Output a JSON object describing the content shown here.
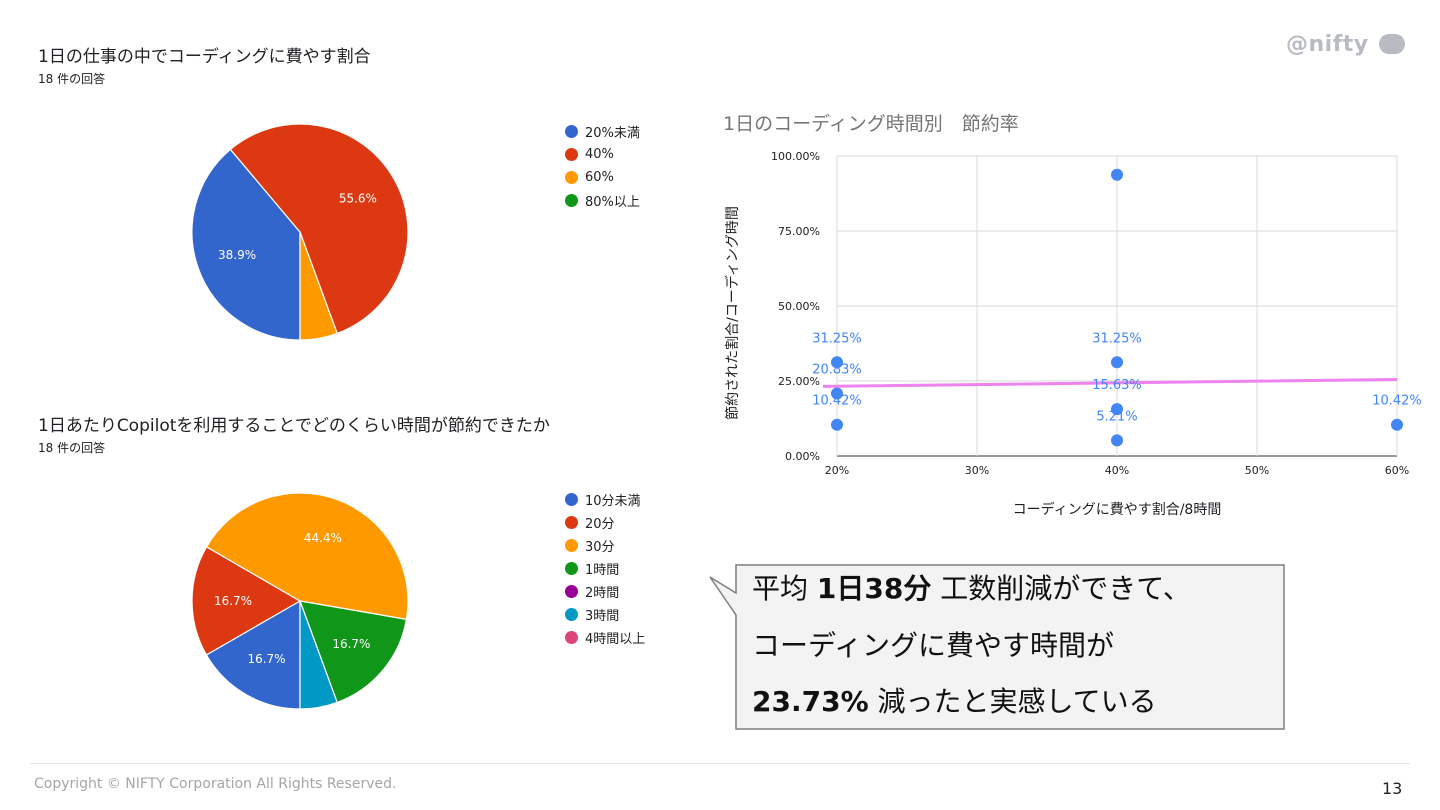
{
  "brand": "@nifty",
  "footer": {
    "copyright": "Copyright © NIFTY Corporation All Rights Reserved.",
    "page_number": "13"
  },
  "colors": {
    "blue": "#3366cc",
    "red": "#dc3912",
    "orange": "#ff9900",
    "green": "#109618",
    "purple": "#990099",
    "teal": "#0099c6",
    "pink": "#dd4477",
    "scatter": "#4285f4",
    "trend": "#ee82ee"
  },
  "chart_data": [
    {
      "type": "pie",
      "title": "1日の仕事の中でコーディングに費やす割合",
      "subtitle": "18 件の回答",
      "labels": [
        "20%未満",
        "40%",
        "60%",
        "80%以上"
      ],
      "values": [
        38.9,
        55.6,
        5.6,
        0
      ],
      "colors": [
        "#3366cc",
        "#dc3912",
        "#ff9900",
        "#109618"
      ],
      "data_labels": [
        "38.9%",
        "55.6%",
        "",
        ""
      ]
    },
    {
      "type": "pie",
      "title": "1日あたりCopilotを利用することでどのくらい時間が節約できたか",
      "subtitle": "18 件の回答",
      "labels": [
        "10分未満",
        "20分",
        "30分",
        "1時間",
        "2時間",
        "3時間",
        "4時間以上"
      ],
      "values": [
        16.7,
        16.7,
        44.4,
        16.7,
        0,
        5.6,
        0
      ],
      "colors": [
        "#3366cc",
        "#dc3912",
        "#ff9900",
        "#109618",
        "#990099",
        "#0099c6",
        "#dd4477"
      ],
      "data_labels": [
        "16.7%",
        "16.7%",
        "44.4%",
        "16.7%",
        "",
        "",
        ""
      ]
    },
    {
      "type": "scatter",
      "title": "1日のコーディング時間別　節約率",
      "xlabel": "コーディングに費やす割合/8時間",
      "ylabel": "節約された割合/コーディング時間",
      "xlim": [
        0.2,
        0.6
      ],
      "ylim": [
        0,
        1.0
      ],
      "x_ticks": [
        "20%",
        "30%",
        "40%",
        "50%",
        "60%"
      ],
      "y_ticks": [
        "0.00%",
        "25.00%",
        "50.00%",
        "75.00%",
        "100.00%"
      ],
      "points": [
        {
          "x": 0.2,
          "y": 0.3125,
          "label": "31.25%"
        },
        {
          "x": 0.2,
          "y": 0.2083,
          "label": "20.83%"
        },
        {
          "x": 0.2,
          "y": 0.1042,
          "label": "10.42%"
        },
        {
          "x": 0.4,
          "y": 0.9375,
          "label": ""
        },
        {
          "x": 0.4,
          "y": 0.3125,
          "label": "31.25%"
        },
        {
          "x": 0.4,
          "y": 0.1563,
          "label": "15.63%"
        },
        {
          "x": 0.4,
          "y": 0.0521,
          "label": "5.21%"
        },
        {
          "x": 0.6,
          "y": 0.1042,
          "label": "10.42%"
        }
      ],
      "trendline": {
        "x": [
          0.2,
          0.6
        ],
        "y": [
          0.232,
          0.255
        ]
      },
      "grid": true
    }
  ],
  "callout": {
    "line1_pre": "平均 ",
    "line1_bold": "1日38分",
    "line1_post": " 工数削減ができて、",
    "line2": "コーディングに費やす時間が",
    "line3_bold": "23.73%",
    "line3_post": " 減ったと実感している"
  }
}
